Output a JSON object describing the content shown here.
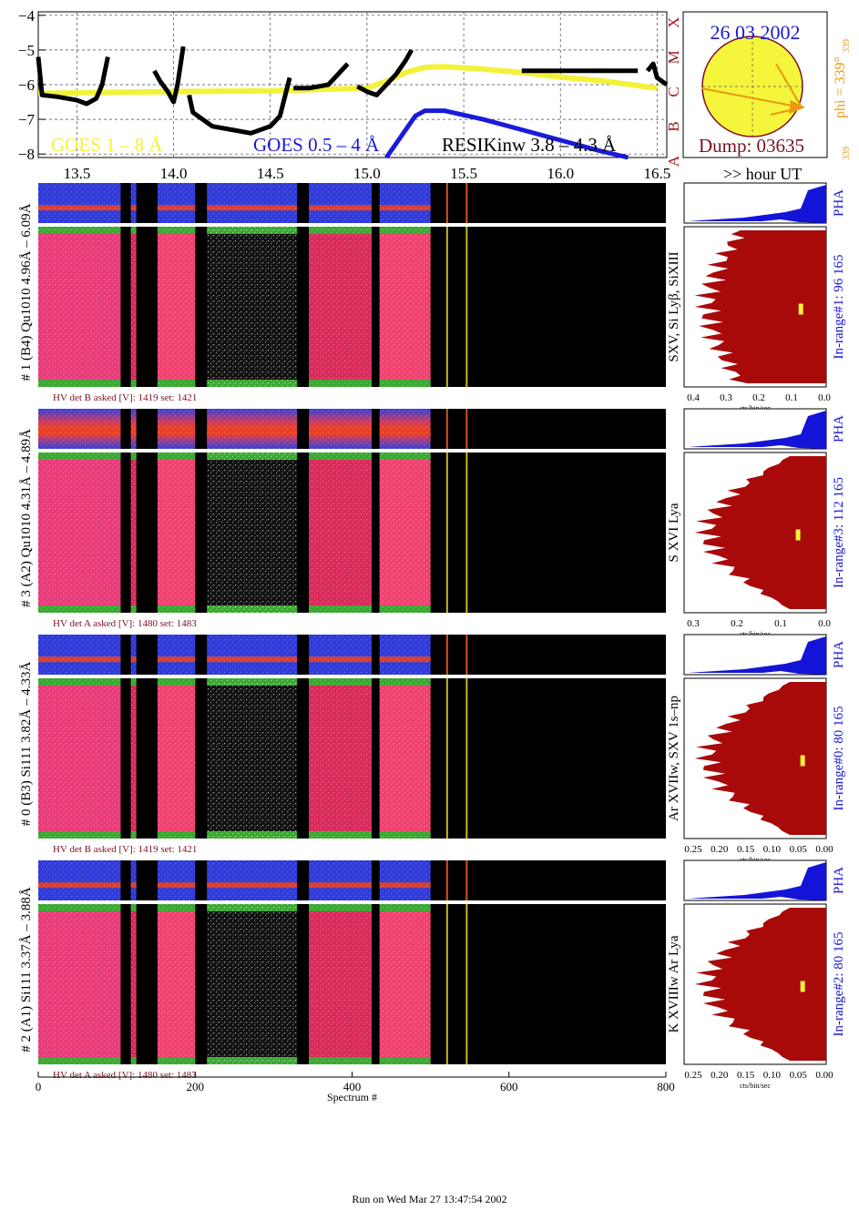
{
  "goes": {
    "date": "26 03 2002",
    "dump_label": "Dump: 03635",
    "phi_label": "phi = 339°",
    "phi_sub": "339",
    "phi_small": "339",
    "legend_goes18": "GOES 1 – 8 Å",
    "legend_goes054": "GOES 0.5 – 4 Å",
    "legend_resik": "RESIKinw 3.8 – 4.3 Å",
    "hour_label": ">> hour UT",
    "y_ticks": [
      "−4",
      "−5",
      "−6",
      "−7",
      "−8"
    ],
    "x_ticks": [
      "13.5",
      "14.0",
      "14.5",
      "15.0",
      "15.5",
      "16.0",
      "16.5"
    ],
    "class_letters": [
      "A",
      "B",
      "C",
      "M",
      "X"
    ],
    "colors": {
      "goes18": "#f2f23a",
      "goes054": "#1a1adc",
      "resik": "#000000",
      "sun": "#f5f53c",
      "date": "#1a1acc",
      "dump": "#7a1020",
      "phi": "#e89a10",
      "class": "#a01828"
    }
  },
  "chart_data": [
    {
      "type": "line",
      "title": "",
      "xlabel": "hour UT",
      "ylabel": "",
      "xlim": [
        13.3,
        16.55
      ],
      "ylim": [
        -8.1,
        -3.9
      ],
      "series": [
        {
          "name": "GOES 1 – 8 Å",
          "color": "#f2f23a",
          "x": [
            13.3,
            13.7,
            14.0,
            14.5,
            15.0,
            15.1,
            15.2,
            15.3,
            15.4,
            15.6,
            15.8,
            16.0,
            16.2,
            16.5
          ],
          "y": [
            -6.25,
            -6.22,
            -6.2,
            -6.18,
            -6.1,
            -5.9,
            -5.65,
            -5.5,
            -5.48,
            -5.55,
            -5.65,
            -5.78,
            -5.88,
            -6.1
          ]
        },
        {
          "name": "GOES 0.5 – 4 Å",
          "color": "#1a1adc",
          "x": [
            15.1,
            15.2,
            15.25,
            15.3,
            15.4,
            15.6,
            15.8,
            16.0,
            16.2,
            16.35
          ],
          "y": [
            -8.1,
            -7.3,
            -6.9,
            -6.75,
            -6.75,
            -7.0,
            -7.3,
            -7.6,
            -7.9,
            -8.1
          ]
        },
        {
          "name": "RESIKinw 3.8 – 4.3 Å",
          "color": "#000000",
          "segments": [
            {
              "x": [
                13.3,
                13.32,
                13.4,
                13.5,
                13.55,
                13.6,
                13.63,
                13.66
              ],
              "y": [
                -5.2,
                -6.3,
                -6.35,
                -6.45,
                -6.55,
                -6.4,
                -6.0,
                -5.2
              ]
            },
            {
              "x": [
                13.9,
                13.93,
                13.97,
                14.0,
                14.02,
                14.05
              ],
              "y": [
                -5.6,
                -5.9,
                -6.2,
                -6.5,
                -6.0,
                -4.9
              ]
            },
            {
              "x": [
                14.08,
                14.1,
                14.2,
                14.3,
                14.4,
                14.5,
                14.55,
                14.6
              ],
              "y": [
                -6.3,
                -6.8,
                -7.2,
                -7.3,
                -7.4,
                -7.2,
                -6.9,
                -5.8
              ]
            },
            {
              "x": [
                14.62,
                14.7,
                14.8,
                14.9
              ],
              "y": [
                -6.1,
                -6.1,
                -6.0,
                -5.4
              ]
            },
            {
              "x": [
                14.95,
                15.0,
                15.05,
                15.1,
                15.15,
                15.2,
                15.23
              ],
              "y": [
                -6.05,
                -6.2,
                -6.3,
                -6.0,
                -5.7,
                -5.3,
                -5.0
              ]
            },
            {
              "x": [
                15.8,
                16.4
              ],
              "y": [
                -5.6,
                -5.6
              ]
            },
            {
              "x": [
                16.45,
                16.48,
                16.5,
                16.55
              ],
              "y": [
                -5.6,
                -5.4,
                -5.8,
                -6.0
              ]
            }
          ]
        }
      ]
    },
    {
      "type": "heatmap",
      "title": "",
      "xlabel": "Spectrum #",
      "x_ticks": [
        "0",
        "200",
        "400",
        "600",
        "800"
      ],
      "xlim": [
        0,
        800
      ],
      "data_blocks": [
        [
          0,
          105
        ],
        [
          118,
          125
        ],
        [
          152,
          200
        ],
        [
          215,
          330
        ],
        [
          345,
          425
        ],
        [
          435,
          500
        ],
        [
          520,
          535
        ],
        [
          545,
          560
        ]
      ],
      "channels": [
        {
          "det": "# 1 (B4) Qu1010 4.96Å – 6.09Å",
          "line": "SXV, Si Lyβ, SiXIII",
          "hv": "HV det B asked [V]:  1419 set:  1421",
          "inrange": "In-range#1:   96 165",
          "pha_ticks": [
            "0.4",
            "0.3",
            "0.2",
            "0.1",
            "0.0"
          ],
          "pha_xlabel": "cts/bin/sec",
          "pha_marker_x": 0.07
        },
        {
          "det": "# 3 (A2) Qu1010  4.31Å – 4.89Å",
          "line": "S XVI Lya",
          "hv": "HV det A asked [V]:  1480 set:  1483",
          "inrange": "In-range#3:   112 165",
          "pha_ticks": [
            "0.3",
            "0.2",
            "0.1",
            "0.0"
          ],
          "pha_xlabel": "cts/bin/sec",
          "pha_marker_x": 0.06
        },
        {
          "det": "# 0 (B3) Si111  3.82Å – 4.33Å",
          "line": "Ar XVIIw,  SXV 1s–np",
          "hv": "HV det B asked [V]:  1419 set:  1421",
          "inrange": "In-range#0:   80 165",
          "pha_ticks": [
            "0.25",
            "0.20",
            "0.15",
            "0.10",
            "0.05",
            "0.00"
          ],
          "pha_xlabel": "cts/bin/sec",
          "pha_marker_x": 0.05
        },
        {
          "det": "# 2 (A1) Si111  3.37Å – 3.88Å",
          "line": "K XVIIIw  Ar Lya",
          "hv": "HV det A asked [V]:  1480 set:  1483",
          "inrange": "In-range#2:   80 165",
          "pha_ticks": [
            "0.25",
            "0.20",
            "0.15",
            "0.10",
            "0.05",
            "0.00"
          ],
          "pha_xlabel": "cts/bin/sec",
          "pha_marker_x": 0.05
        }
      ]
    }
  ],
  "pha_label": "PHA",
  "footer": "Run on Wed Mar 27 13:47:54 2002"
}
